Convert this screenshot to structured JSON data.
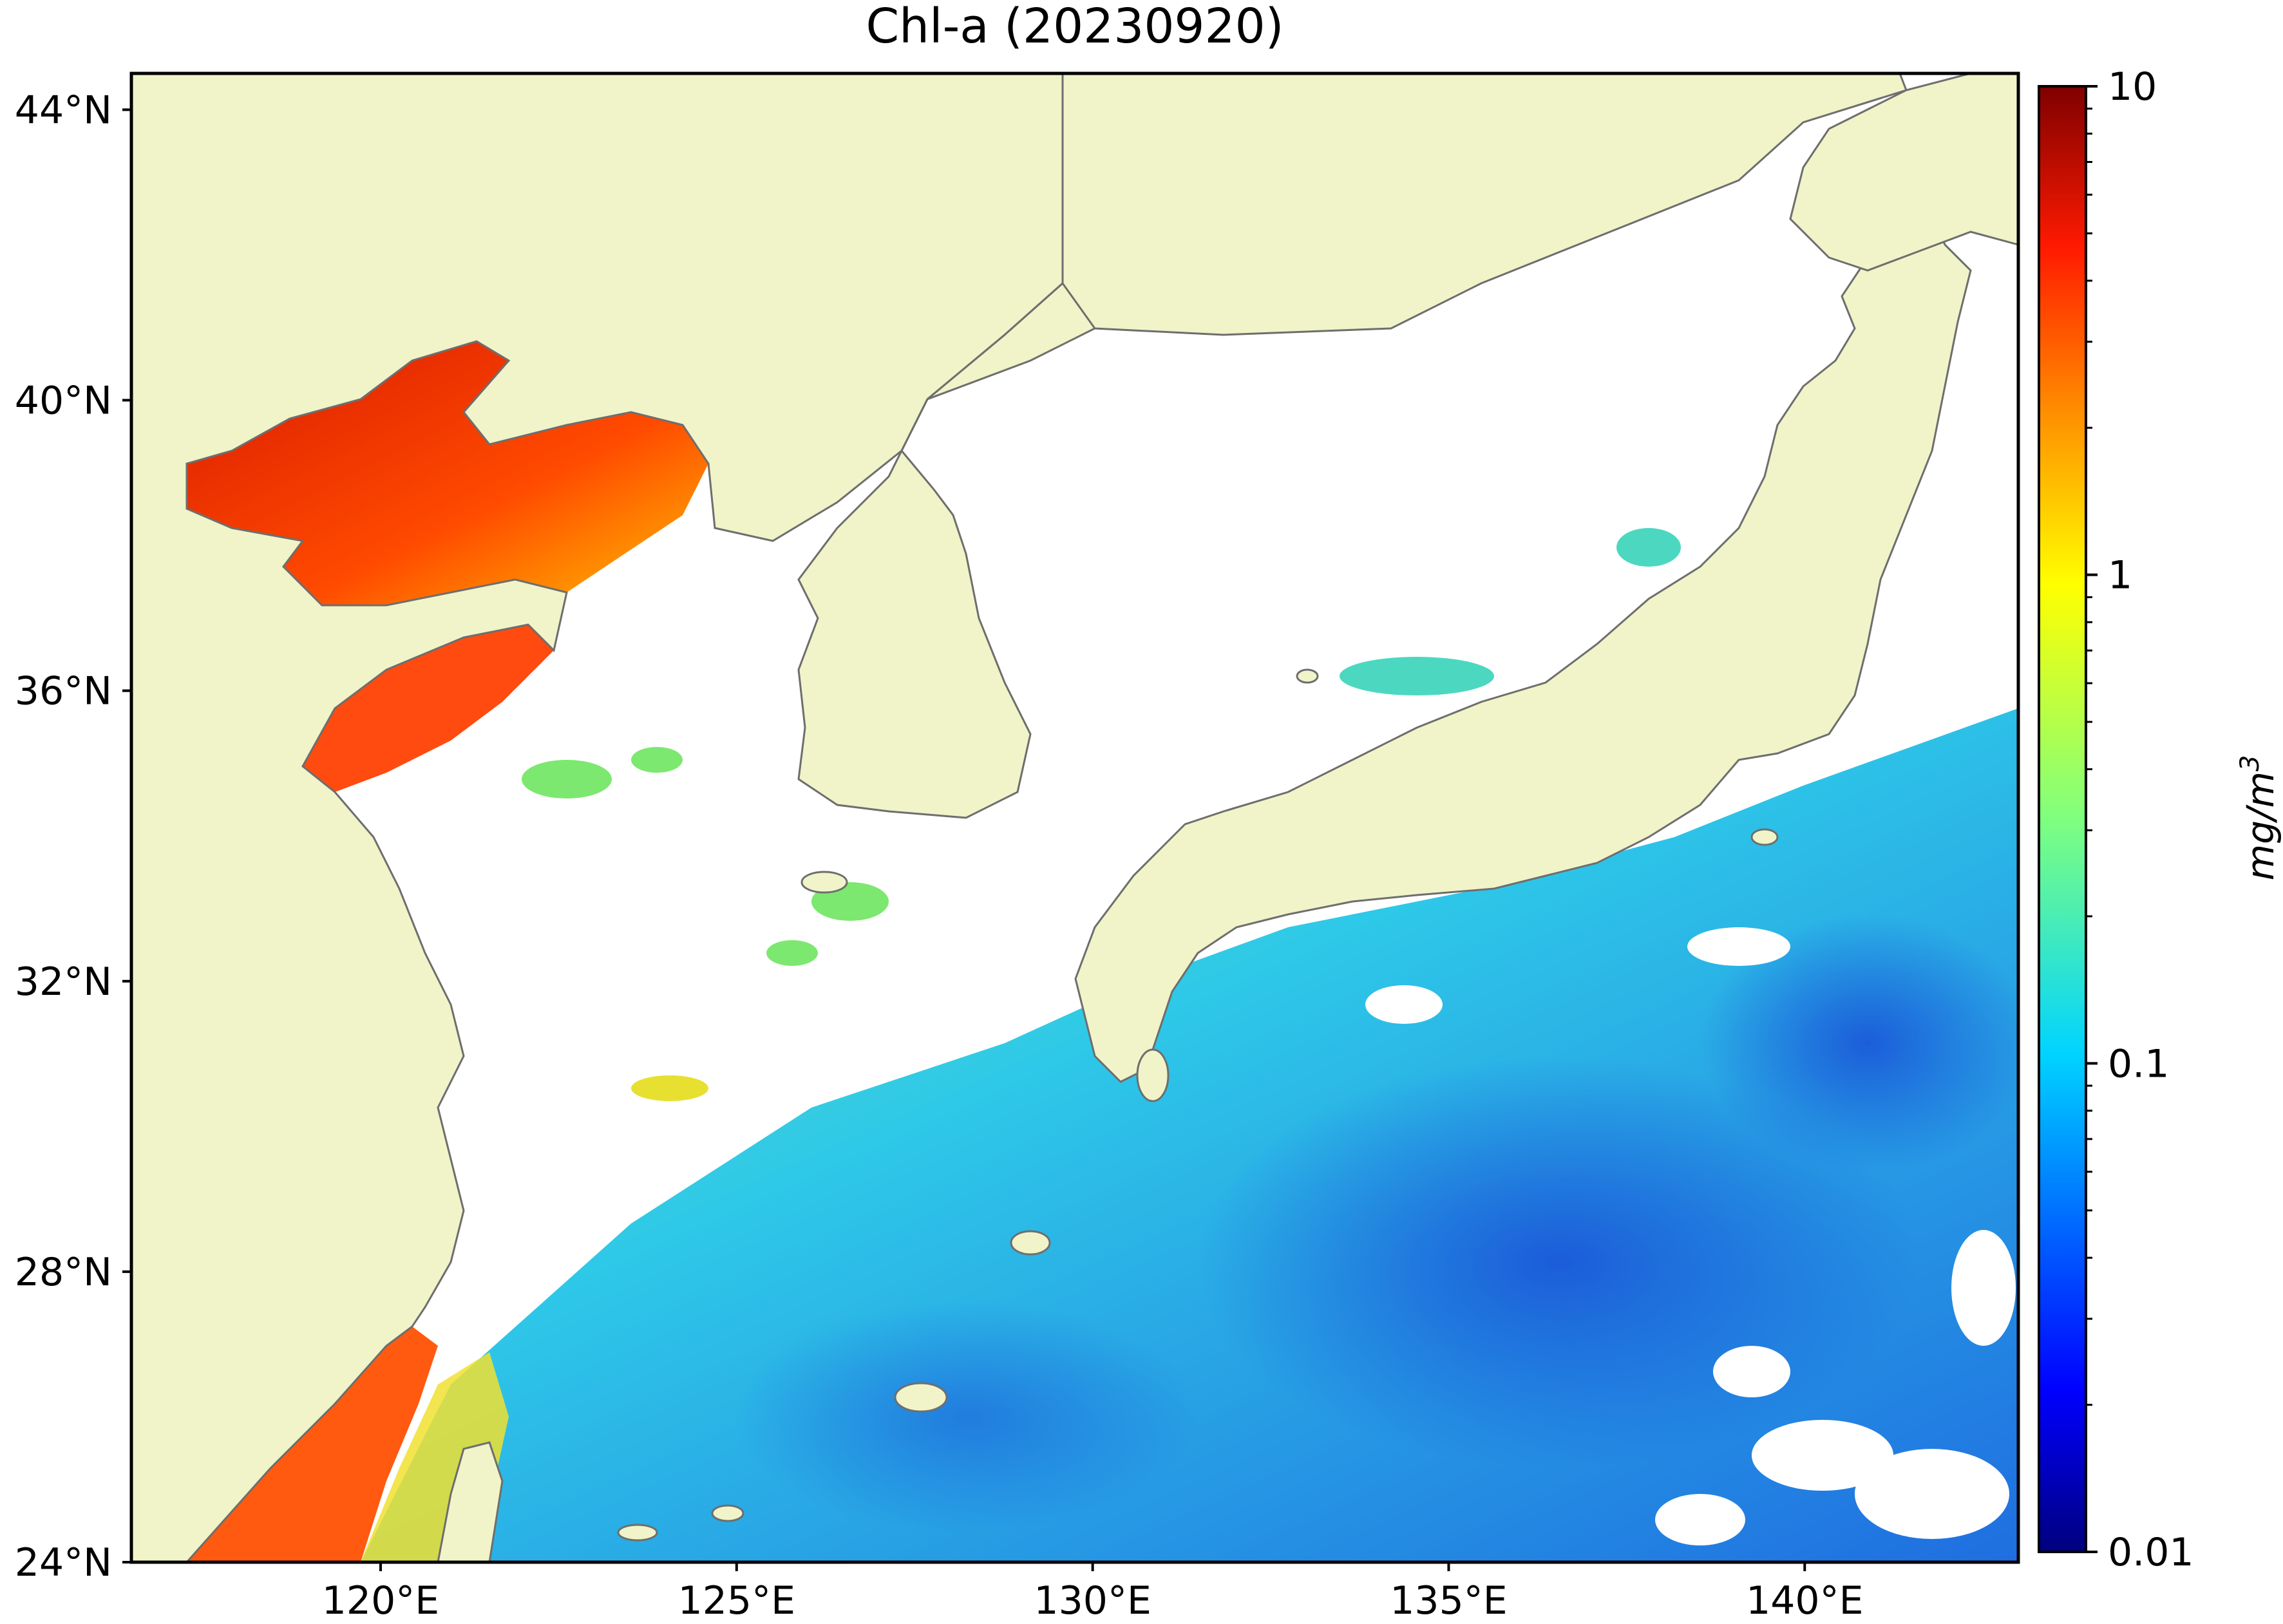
{
  "map": {
    "title": "Chl-a (20230920)",
    "lon_range": [
      116.5,
      143.0
    ],
    "lat_range": [
      24.0,
      44.5
    ],
    "lat_ticks": [
      {
        "value": 44,
        "label": "44°N"
      },
      {
        "value": 40,
        "label": "40°N"
      },
      {
        "value": 36,
        "label": "36°N"
      },
      {
        "value": 32,
        "label": "32°N"
      },
      {
        "value": 28,
        "label": "28°N"
      },
      {
        "value": 24,
        "label": "24°N"
      }
    ],
    "lon_ticks": [
      {
        "value": 120,
        "label": "120°E"
      },
      {
        "value": 125,
        "label": "125°E"
      },
      {
        "value": 130,
        "label": "130°E"
      },
      {
        "value": 135,
        "label": "135°E"
      },
      {
        "value": 140,
        "label": "140°E"
      }
    ],
    "colors": {
      "land": "#f0f4c8",
      "coast": "#6e6e6e",
      "no_data": "#ffffff"
    }
  },
  "colorbar": {
    "label": "mg/m3",
    "scale": "log",
    "range": [
      0.01,
      10
    ],
    "ticks": [
      {
        "value": 10,
        "label": "10"
      },
      {
        "value": 1,
        "label": "1"
      },
      {
        "value": 0.1,
        "label": "0.1"
      },
      {
        "value": 0.01,
        "label": "0.01"
      }
    ],
    "colormap": "jet",
    "colormap_stops": [
      "#00007f",
      "#0000ff",
      "#007fff",
      "#00ffff",
      "#7fff7f",
      "#ffff00",
      "#ff7f00",
      "#ff0000",
      "#7f0000"
    ]
  }
}
